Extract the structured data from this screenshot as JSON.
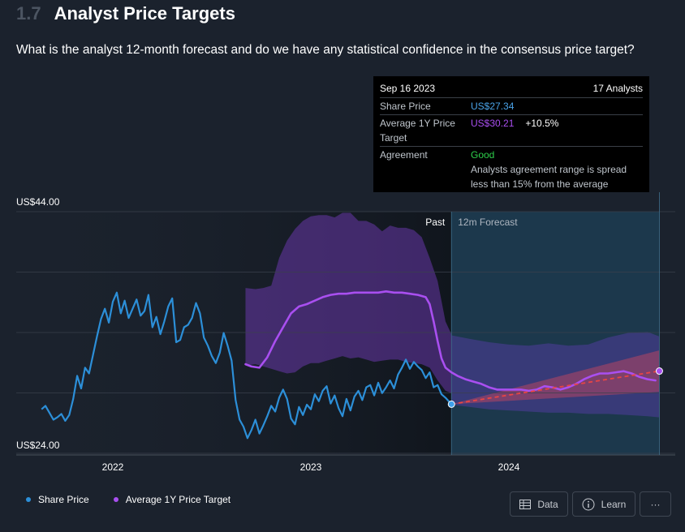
{
  "header": {
    "section_number": "1.7",
    "title": "Analyst Price Targets"
  },
  "question": "What is the analyst 12-month forecast and do we have any statistical confidence in the consensus price target?",
  "tooltip": {
    "date": "Sep 16 2023",
    "analysts": "17 Analysts",
    "share_price_label": "Share Price",
    "share_price_value": "US$27.34",
    "avg_target_label": "Average 1Y Price Target",
    "avg_target_value": "US$30.21",
    "avg_target_change": "+10.5%",
    "agreement_label": "Agreement",
    "agreement_value": "Good",
    "agreement_desc": "Analysts agreement range is spread less than 15% from the average"
  },
  "legend": {
    "share_price": "Share Price",
    "avg_target": "Average 1Y Price Target"
  },
  "buttons": {
    "data": "Data",
    "learn": "Learn",
    "more": "···"
  },
  "colors": {
    "share_price": "#2c8fd8",
    "avg_target": "#a94ff0",
    "band": "#7b3fc6",
    "forecast_bg": "#1d4a66",
    "trend": "#e84545"
  },
  "chart_data": {
    "type": "line",
    "y_top_label": "US$44.00",
    "y_bottom_label": "US$24.00",
    "ylim": [
      24,
      44
    ],
    "x_tick_labels": [
      "2022",
      "2023",
      "2024"
    ],
    "x_tick_times": [
      2022.0,
      2023.0,
      2024.0
    ],
    "xlim": [
      2021.5,
      2024.76
    ],
    "region_labels": {
      "past": "Past",
      "forecast": "12m Forecast"
    },
    "forecast_start": 2023.71,
    "share_price": {
      "name": "Share Price",
      "x": [
        2021.64,
        2021.66,
        2021.68,
        2021.7,
        2021.72,
        2021.74,
        2021.76,
        2021.78,
        2021.8,
        2021.82,
        2021.84,
        2021.86,
        2021.88,
        2021.9,
        2021.92,
        2021.94,
        2021.96,
        2021.98,
        2022.0,
        2022.02,
        2022.04,
        2022.06,
        2022.08,
        2022.1,
        2022.12,
        2022.14,
        2022.16,
        2022.18,
        2022.2,
        2022.22,
        2022.24,
        2022.26,
        2022.28,
        2022.3,
        2022.32,
        2022.34,
        2022.36,
        2022.38,
        2022.4,
        2022.42,
        2022.44,
        2022.46,
        2022.48,
        2022.5,
        2022.52,
        2022.54,
        2022.56,
        2022.58,
        2022.6,
        2022.62,
        2022.64,
        2022.66,
        2022.68,
        2022.7,
        2022.72,
        2022.74,
        2022.76,
        2022.78,
        2022.8,
        2022.82,
        2022.84,
        2022.86,
        2022.88,
        2022.9,
        2022.92,
        2022.94,
        2022.96,
        2022.98,
        2023.0,
        2023.02,
        2023.04,
        2023.06,
        2023.08,
        2023.1,
        2023.12,
        2023.14,
        2023.16,
        2023.18,
        2023.2,
        2023.22,
        2023.24,
        2023.26,
        2023.28,
        2023.3,
        2023.32,
        2023.34,
        2023.36,
        2023.38,
        2023.4,
        2023.42,
        2023.44,
        2023.46,
        2023.48,
        2023.5,
        2023.52,
        2023.54,
        2023.56,
        2023.58,
        2023.6,
        2023.62,
        2023.64,
        2023.66,
        2023.68,
        2023.71
      ],
      "y": [
        26.9,
        27.2,
        26.6,
        26.0,
        26.2,
        26.5,
        25.9,
        26.4,
        27.8,
        29.8,
        28.7,
        30.5,
        30.0,
        31.6,
        33.2,
        34.7,
        35.6,
        34.4,
        36.2,
        37.0,
        35.2,
        36.3,
        34.8,
        35.6,
        36.4,
        35.0,
        35.4,
        36.8,
        34.0,
        34.9,
        33.4,
        34.5,
        35.8,
        36.5,
        32.7,
        32.9,
        34.0,
        34.2,
        34.8,
        36.1,
        35.2,
        33.1,
        32.4,
        31.5,
        30.9,
        31.8,
        33.5,
        32.4,
        31.1,
        27.7,
        26.0,
        25.4,
        24.4,
        25.1,
        26.0,
        24.8,
        25.5,
        26.3,
        27.2,
        26.7,
        27.9,
        28.6,
        27.8,
        26.1,
        25.6,
        27.1,
        26.4,
        27.3,
        26.9,
        28.2,
        27.6,
        28.5,
        28.9,
        27.4,
        28.1,
        27.0,
        26.3,
        27.8,
        26.8,
        28.0,
        28.5,
        27.7,
        28.8,
        29.0,
        28.1,
        29.2,
        28.3,
        28.8,
        29.4,
        28.7,
        29.9,
        30.5,
        31.2,
        30.4,
        31.0,
        30.6,
        30.3,
        29.6,
        30.1,
        28.8,
        29.0,
        28.2,
        27.9,
        27.34
      ]
    },
    "avg_target": {
      "name": "Average 1Y Price Target",
      "x": [
        2022.67,
        2022.7,
        2022.74,
        2022.78,
        2022.82,
        2022.86,
        2022.9,
        2022.94,
        2022.98,
        2023.02,
        2023.06,
        2023.1,
        2023.14,
        2023.18,
        2023.22,
        2023.26,
        2023.3,
        2023.34,
        2023.38,
        2023.42,
        2023.46,
        2023.5,
        2023.54,
        2023.58,
        2023.6,
        2023.62,
        2023.64,
        2023.66,
        2023.68,
        2023.71,
        2023.74,
        2023.78,
        2023.82,
        2023.86,
        2023.9,
        2023.94,
        2023.98,
        2024.02,
        2024.06,
        2024.1,
        2024.14,
        2024.18,
        2024.22,
        2024.26,
        2024.3,
        2024.34,
        2024.38,
        2024.42,
        2024.46,
        2024.5,
        2024.54,
        2024.58,
        2024.62,
        2024.66,
        2024.7,
        2024.74
      ],
      "y": [
        30.8,
        30.6,
        30.5,
        31.4,
        32.8,
        34.0,
        35.2,
        35.8,
        36.0,
        36.3,
        36.6,
        36.8,
        36.9,
        36.9,
        37.0,
        37.0,
        37.0,
        37.0,
        37.1,
        37.0,
        37.0,
        36.9,
        36.8,
        36.6,
        36.0,
        34.5,
        32.8,
        31.3,
        30.5,
        30.1,
        29.8,
        29.5,
        29.3,
        29.1,
        28.8,
        28.6,
        28.6,
        28.6,
        28.6,
        28.5,
        28.6,
        28.9,
        28.8,
        28.6,
        28.8,
        29.1,
        29.5,
        29.8,
        30.0,
        30.0,
        30.1,
        30.2,
        30.0,
        29.7,
        29.5,
        29.4
      ]
    },
    "target_band": {
      "x": [
        2022.67,
        2022.72,
        2022.76,
        2022.8,
        2022.84,
        2022.88,
        2022.92,
        2022.96,
        2023.0,
        2023.04,
        2023.08,
        2023.12,
        2023.16,
        2023.2,
        2023.24,
        2023.28,
        2023.32,
        2023.36,
        2023.4,
        2023.44,
        2023.48,
        2023.52,
        2023.56,
        2023.6,
        2023.64,
        2023.68,
        2023.71
      ],
      "high": [
        37.4,
        37.3,
        37.4,
        37.6,
        40.0,
        41.5,
        42.5,
        43.2,
        43.6,
        43.7,
        43.7,
        43.5,
        43.9,
        43.9,
        43.2,
        43.2,
        42.9,
        42.3,
        42.8,
        42.6,
        42.6,
        42.4,
        41.8,
        40.0,
        38.0,
        34.5,
        33.4
      ],
      "low": [
        30.7,
        30.8,
        30.6,
        30.4,
        30.2,
        30.0,
        30.1,
        30.6,
        30.9,
        30.9,
        31.1,
        31.3,
        31.5,
        31.3,
        31.4,
        31.2,
        31.0,
        31.1,
        31.2,
        31.2,
        31.0,
        30.9,
        30.8,
        30.5,
        29.4,
        28.5,
        28.3
      ]
    },
    "forecast_band": {
      "x": [
        2023.71,
        2023.8,
        2023.9,
        2024.0,
        2024.1,
        2024.2,
        2024.3,
        2024.4,
        2024.5,
        2024.6,
        2024.7,
        2024.76
      ],
      "high": [
        33.3,
        33.0,
        32.7,
        32.5,
        32.4,
        32.6,
        32.4,
        32.5,
        33.1,
        33.5,
        33.6,
        33.2
      ],
      "low": [
        27.3,
        27.1,
        26.9,
        26.8,
        26.7,
        26.6,
        26.6,
        26.5,
        26.5,
        26.4,
        26.3,
        26.2
      ]
    },
    "forecast_trend": {
      "x_start": 2023.71,
      "y_start": 27.34,
      "x_end": 2024.76,
      "y_end": 30.21,
      "range_end_high": 32.0,
      "range_end_low": 28.4
    }
  }
}
